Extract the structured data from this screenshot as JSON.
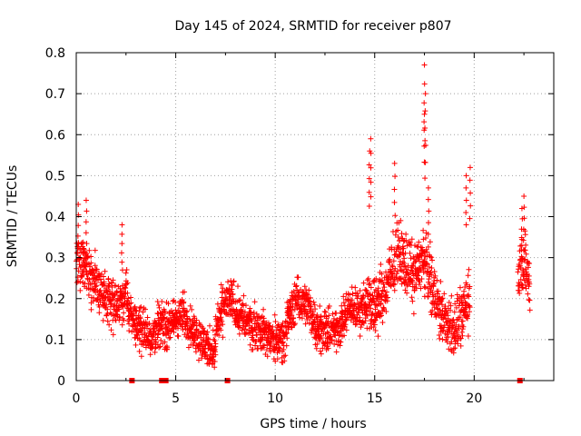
{
  "chart_data": {
    "type": "scatter",
    "title": "Day 145 of 2024, SRMTID for receiver p807",
    "xlabel": "GPS time / hours",
    "ylabel": "SRMTID / TECUs",
    "xlim": [
      0,
      24
    ],
    "ylim": [
      0,
      0.8
    ],
    "xticks": [
      0,
      5,
      10,
      15,
      20
    ],
    "xtick_labels": [
      "0",
      "5",
      "10",
      "15",
      "20"
    ],
    "yticks": [
      0,
      0.1,
      0.2,
      0.3,
      0.4,
      0.5,
      0.6,
      0.7,
      0.8
    ],
    "ytick_labels": [
      "0",
      "0.1",
      "0.2",
      "0.3",
      "0.4",
      "0.5",
      "0.6",
      "0.7",
      "0.8"
    ],
    "grid": true,
    "marker": "plus",
    "color": "#ff0000",
    "baseline_markers": {
      "y": 0,
      "x": [
        2.8,
        4.3,
        4.5,
        7.6,
        22.3
      ],
      "style": "square"
    },
    "series_segments": [
      {
        "x": [
          0.0,
          0.3,
          0.6,
          0.9,
          1.2,
          1.5,
          1.8,
          2.1,
          2.4,
          2.6
        ],
        "y": [
          0.27,
          0.3,
          0.26,
          0.24,
          0.22,
          0.2,
          0.19,
          0.18,
          0.2,
          0.21
        ],
        "spread": 0.06
      },
      {
        "x": [
          2.6,
          3.0,
          3.4,
          3.8,
          4.2,
          4.6,
          5.0,
          5.4,
          5.8,
          6.2,
          6.6,
          7.0
        ],
        "y": [
          0.17,
          0.14,
          0.12,
          0.11,
          0.14,
          0.13,
          0.15,
          0.16,
          0.13,
          0.1,
          0.08,
          0.07
        ],
        "spread": 0.05
      },
      {
        "x": [
          7.0,
          7.4,
          7.8,
          8.2,
          8.6,
          9.0,
          9.4,
          9.8,
          10.2,
          10.6
        ],
        "y": [
          0.12,
          0.18,
          0.2,
          0.16,
          0.14,
          0.13,
          0.12,
          0.1,
          0.1,
          0.12
        ],
        "spread": 0.05
      },
      {
        "x": [
          10.6,
          11.0,
          11.4,
          11.8,
          12.2,
          12.6,
          13.0,
          13.4,
          13.8,
          14.2,
          14.6
        ],
        "y": [
          0.15,
          0.19,
          0.2,
          0.16,
          0.13,
          0.12,
          0.12,
          0.15,
          0.18,
          0.17,
          0.19
        ],
        "spread": 0.05
      },
      {
        "x": [
          14.6,
          15.0,
          15.4,
          15.8,
          16.2,
          16.6,
          17.0,
          17.4,
          17.8,
          18.2,
          18.6,
          19.0,
          19.4,
          19.8
        ],
        "y": [
          0.2,
          0.18,
          0.21,
          0.25,
          0.32,
          0.28,
          0.26,
          0.3,
          0.25,
          0.18,
          0.14,
          0.13,
          0.16,
          0.2
        ],
        "spread": 0.07
      },
      {
        "x": [
          22.2,
          22.4,
          22.6,
          22.8
        ],
        "y": [
          0.25,
          0.3,
          0.28,
          0.22
        ],
        "spread": 0.07
      }
    ],
    "peaks": [
      {
        "x": 0.1,
        "y": 0.43
      },
      {
        "x": 0.5,
        "y": 0.44
      },
      {
        "x": 2.3,
        "y": 0.38
      },
      {
        "x": 14.8,
        "y": 0.59
      },
      {
        "x": 14.75,
        "y": 0.56
      },
      {
        "x": 16.0,
        "y": 0.53
      },
      {
        "x": 17.5,
        "y": 0.77
      },
      {
        "x": 17.55,
        "y": 0.7
      },
      {
        "x": 17.5,
        "y": 0.65
      },
      {
        "x": 17.7,
        "y": 0.47
      },
      {
        "x": 19.8,
        "y": 0.52
      },
      {
        "x": 19.6,
        "y": 0.5
      },
      {
        "x": 22.5,
        "y": 0.45
      },
      {
        "x": 22.4,
        "y": 0.42
      }
    ]
  }
}
